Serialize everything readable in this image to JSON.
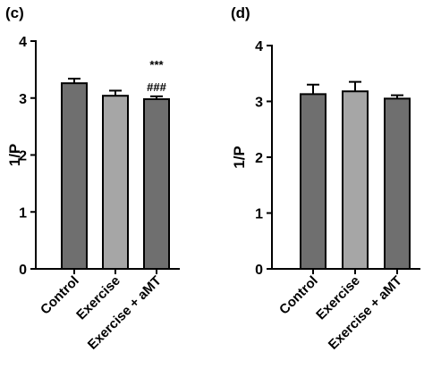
{
  "colors": {
    "dark_bar": "#6f6f6f",
    "light_bar": "#a6a6a6",
    "axis": "#000000"
  },
  "chart_data": [
    {
      "panel_label": "(c)",
      "type": "bar",
      "ylabel": "1/P",
      "ylim": [
        0,
        4
      ],
      "yticks": [
        "0",
        "1",
        "2",
        "3",
        "4"
      ],
      "categories": [
        "Control",
        "Exercise",
        "Exercise + aMT"
      ],
      "values": [
        3.26,
        3.04,
        2.98
      ],
      "errors": [
        0.08,
        0.09,
        0.05
      ],
      "bar_colors": [
        "dark",
        "light",
        "dark"
      ],
      "annotations": [
        {
          "category": "Exercise + aMT",
          "lines": [
            "***",
            "###"
          ]
        }
      ]
    },
    {
      "panel_label": "(d)",
      "type": "bar",
      "ylabel": "1/P",
      "ylim": [
        0,
        4
      ],
      "yticks": [
        "0",
        "1",
        "2",
        "3",
        "4"
      ],
      "categories": [
        "Control",
        "Exercise",
        "Exercise + aMT"
      ],
      "values": [
        3.13,
        3.18,
        3.05
      ],
      "errors": [
        0.17,
        0.17,
        0.06
      ],
      "bar_colors": [
        "dark",
        "light",
        "dark"
      ],
      "annotations": []
    }
  ]
}
